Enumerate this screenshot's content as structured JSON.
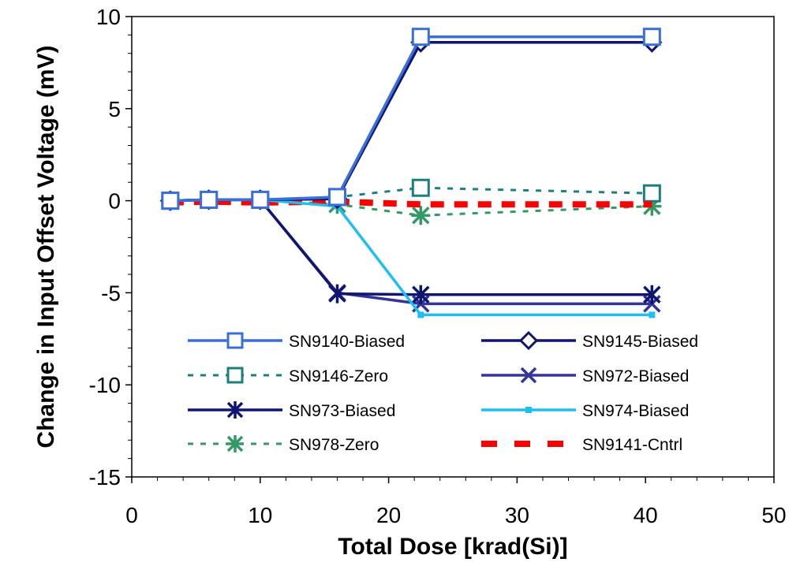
{
  "chart_data": {
    "type": "line",
    "title": "",
    "xlabel": "Total Dose [krad(Si)]",
    "ylabel": "Change in Input Offset Voltage (mV)",
    "xlim": [
      0,
      50
    ],
    "ylim": [
      -15,
      10
    ],
    "xticks": [
      0,
      10,
      20,
      30,
      40,
      50
    ],
    "yticks": [
      -15,
      -10,
      -5,
      0,
      5,
      10
    ],
    "xtick_labels": [
      "0",
      "10",
      "20",
      "30",
      "40",
      "50"
    ],
    "ytick_labels": [
      "-15",
      "-10",
      "-5",
      "0",
      "5",
      "10"
    ],
    "grid": false,
    "legend_position": "inside-bottom",
    "series": [
      {
        "name": "SN9140-Biased",
        "color": "#3A6FD8",
        "line": "solid",
        "marker": "square",
        "x": [
          3,
          6,
          10,
          16,
          22.5,
          40.5
        ],
        "y": [
          0,
          0.05,
          0.05,
          0.2,
          8.9,
          8.9
        ]
      },
      {
        "name": "SN9145-Biased",
        "color": "#0F1670",
        "line": "solid",
        "marker": "diamond",
        "x": [
          3,
          6,
          10,
          16,
          22.5,
          40.5
        ],
        "y": [
          0,
          0.05,
          0.05,
          0.1,
          8.6,
          8.6
        ]
      },
      {
        "name": "SN9146-Zero",
        "color": "#1B7F7F",
        "line": "dotted",
        "marker": "square",
        "x": [
          3,
          6,
          10,
          16,
          22.5,
          40.5
        ],
        "y": [
          0,
          0.05,
          0.05,
          0.2,
          0.7,
          0.4
        ]
      },
      {
        "name": "SN972-Biased",
        "color": "#34349A",
        "line": "solid",
        "marker": "x",
        "x": [
          3,
          6,
          10,
          16,
          22.5,
          40.5
        ],
        "y": [
          0,
          0.05,
          0.05,
          -5.0,
          -5.6,
          -5.6
        ]
      },
      {
        "name": "SN973-Biased",
        "color": "#0F1670",
        "line": "solid",
        "marker": "asterisk",
        "x": [
          3,
          6,
          10,
          16,
          22.5,
          40.5
        ],
        "y": [
          0,
          0.05,
          0.05,
          -5.05,
          -5.1,
          -5.1
        ]
      },
      {
        "name": "SN974-Biased",
        "color": "#1EBFEF",
        "line": "solid",
        "marker": "smallsquare",
        "x": [
          3,
          6,
          10,
          16,
          22.5,
          40.5
        ],
        "y": [
          0,
          0.05,
          0.05,
          -0.3,
          -6.2,
          -6.2
        ]
      },
      {
        "name": "SN978-Zero",
        "color": "#339966",
        "line": "dotted",
        "marker": "star",
        "x": [
          3,
          6,
          10,
          16,
          22.5,
          40.5
        ],
        "y": [
          0,
          0.05,
          0.05,
          -0.2,
          -0.8,
          -0.3
        ]
      },
      {
        "name": "SN9141-Cntrl",
        "color": "#FF0000",
        "line": "dashed",
        "marker": "none",
        "x": [
          3,
          6,
          10,
          16,
          22.5,
          40.5
        ],
        "y": [
          -0.1,
          -0.05,
          -0.1,
          -0.05,
          -0.2,
          -0.2
        ]
      }
    ]
  }
}
